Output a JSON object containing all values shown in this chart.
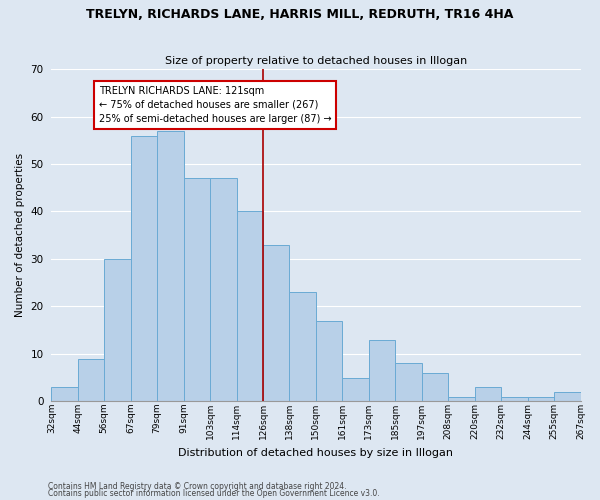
{
  "title": "TRELYN, RICHARDS LANE, HARRIS MILL, REDRUTH, TR16 4HA",
  "subtitle": "Size of property relative to detached houses in Illogan",
  "xlabel": "Distribution of detached houses by size in Illogan",
  "ylabel": "Number of detached properties",
  "bar_values": [
    3,
    9,
    30,
    56,
    57,
    47,
    47,
    40,
    33,
    23,
    17,
    5,
    13,
    8,
    6,
    1,
    3,
    1,
    1,
    2
  ],
  "bin_labels": [
    "32sqm",
    "44sqm",
    "56sqm",
    "67sqm",
    "79sqm",
    "91sqm",
    "103sqm",
    "114sqm",
    "126sqm",
    "138sqm",
    "150sqm",
    "161sqm",
    "173sqm",
    "185sqm",
    "197sqm",
    "208sqm",
    "220sqm",
    "232sqm",
    "244sqm",
    "255sqm",
    "267sqm"
  ],
  "bar_color": "#b8d0e8",
  "bar_edge_color": "#6aaad4",
  "vline_color": "#aa0000",
  "annotation_box_text": "TRELYN RICHARDS LANE: 121sqm\n← 75% of detached houses are smaller (267)\n25% of semi-detached houses are larger (87) →",
  "annotation_box_edge": "#cc0000",
  "annotation_box_facecolor": "#ffffff",
  "bg_color": "#dde7f2",
  "plot_bg_color": "#dde7f2",
  "grid_color": "#ffffff",
  "footer1": "Contains HM Land Registry data © Crown copyright and database right 2024.",
  "footer2": "Contains public sector information licensed under the Open Government Licence v3.0.",
  "ylim": [
    0,
    70
  ],
  "yticks": [
    0,
    10,
    20,
    30,
    40,
    50,
    60,
    70
  ],
  "vline_bin_index": 8
}
